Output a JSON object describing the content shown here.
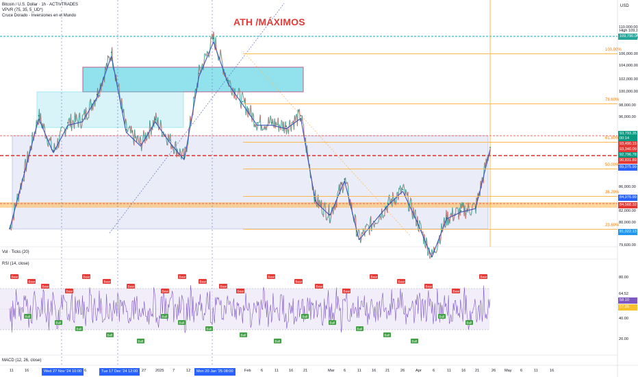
{
  "header": {
    "title": "Bitcoin / U.S. Dollar · 1h · ACTIVTRADES",
    "indicator1": "VPVR (75, 35, 5_UD*)",
    "indicator2": "Cruce Dorado - Inversiones en el Mundo",
    "currency": "USD"
  },
  "annotation": "ATH /MÁXIMOS",
  "fib_levels": [
    {
      "label": "100.00%",
      "price": 106800
    },
    {
      "label": "78.60%",
      "price": 99700
    },
    {
      "label": "61.80%",
      "price": 94300
    },
    {
      "label": "50.00%",
      "price": 90500
    },
    {
      "label": "38.20%",
      "price": 86600
    },
    {
      "label": "23.60%",
      "price": 81900
    }
  ],
  "price_axis": [
    "110,000.00",
    "108,000.00",
    "106,000.00",
    "104,000.00",
    "102,000.00",
    "100,000.00",
    "98,000.00",
    "96,000.00",
    "86,000.00",
    "84,000.00",
    "82,000.00",
    "80,000.00",
    "79,600.00"
  ],
  "price_tags": [
    {
      "label": "High",
      "value": "109,182.41",
      "color": "#ffffff",
      "text": "#131722"
    },
    {
      "label": "",
      "value": "109,790.00",
      "color": "#26a69a",
      "text": "#ffffff"
    },
    {
      "label": "",
      "value": "93,793.35",
      "color": "#089981",
      "text": "#ffffff"
    },
    {
      "label": "",
      "value": "00:14",
      "color": "#089981",
      "text": "#ffffff"
    },
    {
      "label": "",
      "value": "93,490.15",
      "color": "#e53935",
      "text": "#ffffff"
    },
    {
      "label": "",
      "value": "93,340.09",
      "color": "#e53935",
      "text": "#ffffff"
    },
    {
      "label": "",
      "value": "92,796.78",
      "color": "#089981",
      "text": "#ffffff"
    },
    {
      "label": "",
      "value": "90,831.89",
      "color": "#e53935",
      "text": "#ffffff"
    },
    {
      "label": "",
      "value": "89,075.99",
      "color": "#2962ff",
      "text": "#ffffff"
    },
    {
      "label": "",
      "value": "84,976.99",
      "color": "#2962ff",
      "text": "#ffffff"
    },
    {
      "label": "",
      "value": "84,568.32",
      "color": "#e53935",
      "text": "#ffffff"
    },
    {
      "label": "",
      "value": "81,022.13",
      "color": "#2196f3",
      "text": "#ffffff"
    }
  ],
  "panels": {
    "volume": "Vol · Ticks (20)",
    "rsi": "RSI (14, close)",
    "macd": "MACD (12, 26, close)"
  },
  "rsi_axis": [
    "80.00",
    "64.52",
    "40.00",
    "20.00"
  ],
  "rsi_tags": [
    {
      "value": "58.10",
      "color": "#7e57c2"
    },
    {
      "value": "57.85",
      "color": "#fbc02d"
    }
  ],
  "rsi_labels": {
    "bear": "Bear",
    "bull": "Bull"
  },
  "time_axis": [
    "11",
    "16",
    "6",
    "27",
    "2025",
    "7",
    "12",
    "27",
    "Feb",
    "6",
    "11",
    "16",
    "21",
    "Mar",
    "6",
    "11",
    "16",
    "21",
    "26",
    "Apr",
    "6",
    "11",
    "16",
    "21",
    "26",
    "May",
    "6",
    "11",
    "16"
  ],
  "time_highlights": [
    "Wed 27 Nov '24  10:00",
    "Tue 17 Dec '24  12:00",
    "Mon 20 Jan '25  08:00"
  ],
  "chart_data": {
    "type": "line",
    "title": "Bitcoin / U.S. Dollar · 1h · ACTIVTRADES",
    "ylabel": "USD",
    "ylim": [
      79600,
      111500
    ],
    "series": [
      {
        "name": "BTCUSD",
        "x": [
          "Nov 11",
          "Nov 16",
          "Nov 22",
          "Nov 27",
          "Dec 2",
          "Dec 6",
          "Dec 12",
          "Dec 17",
          "Dec 22",
          "Dec 27",
          "Jan 2",
          "Jan 7",
          "Jan 12",
          "Jan 17",
          "Jan 20",
          "Jan 27",
          "Feb 1",
          "Feb 6",
          "Feb 11",
          "Feb 16",
          "Feb 21",
          "Feb 26",
          "Mar 1",
          "Mar 6",
          "Mar 11",
          "Mar 16",
          "Mar 21",
          "Mar 26",
          "Apr 1",
          "Apr 6",
          "Apr 11",
          "Apr 16",
          "Apr 21",
          "Apr 24"
        ],
        "values": [
          82000,
          90000,
          98000,
          93000,
          97000,
          97500,
          101000,
          107000,
          96000,
          94000,
          97500,
          94500,
          92000,
          104000,
          109000,
          103000,
          100000,
          97000,
          97000,
          96500,
          98000,
          86000,
          84000,
          89000,
          80500,
          83000,
          85500,
          87500,
          83000,
          78000,
          83500,
          84500,
          85000,
          93500
        ]
      }
    ]
  }
}
